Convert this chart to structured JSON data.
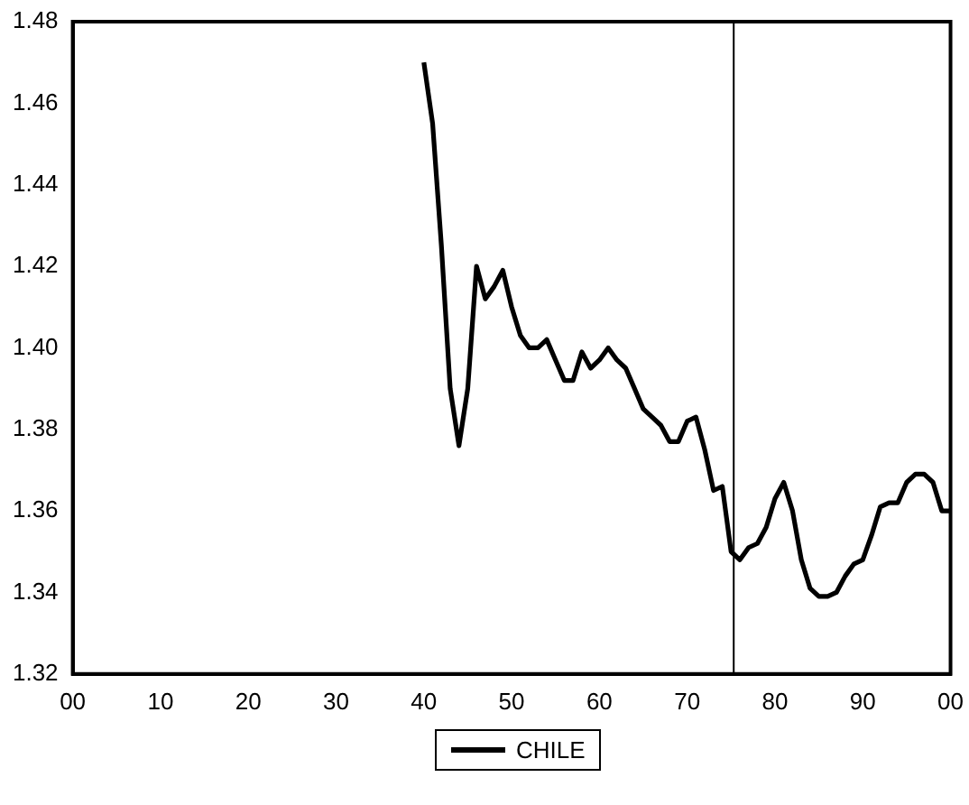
{
  "chart_data": {
    "type": "line",
    "x": [
      1940,
      1941,
      1942,
      1943,
      1944,
      1945,
      1946,
      1947,
      1948,
      1949,
      1950,
      1951,
      1952,
      1953,
      1954,
      1955,
      1956,
      1957,
      1958,
      1959,
      1960,
      1961,
      1962,
      1963,
      1964,
      1965,
      1966,
      1967,
      1968,
      1969,
      1970,
      1971,
      1972,
      1973,
      1974,
      1975,
      1976,
      1977,
      1978,
      1979,
      1980,
      1981,
      1982,
      1983,
      1984,
      1985,
      1986,
      1987,
      1988,
      1989,
      1990,
      1991,
      1992,
      1993,
      1994,
      1995,
      1996,
      1997,
      1998,
      1999,
      2000
    ],
    "series": [
      {
        "name": "CHILE",
        "color": "#000000",
        "values": [
          1.47,
          1.455,
          1.425,
          1.39,
          1.376,
          1.39,
          1.42,
          1.412,
          1.415,
          1.419,
          1.41,
          1.403,
          1.4,
          1.4,
          1.402,
          1.397,
          1.392,
          1.392,
          1.399,
          1.395,
          1.397,
          1.4,
          1.397,
          1.395,
          1.39,
          1.385,
          1.383,
          1.381,
          1.377,
          1.377,
          1.382,
          1.383,
          1.375,
          1.365,
          1.366,
          1.35,
          1.348,
          1.351,
          1.352,
          1.356,
          1.363,
          1.367,
          1.36,
          1.348,
          1.341,
          1.339,
          1.339,
          1.34,
          1.344,
          1.347,
          1.348,
          1.354,
          1.361,
          1.362,
          1.362,
          1.367,
          1.369,
          1.369,
          1.367,
          1.36,
          1.36
        ]
      }
    ],
    "xlim": [
      1900,
      2000
    ],
    "xticks": [
      {
        "value": 1900,
        "label": "00"
      },
      {
        "value": 1910,
        "label": "10"
      },
      {
        "value": 1920,
        "label": "20"
      },
      {
        "value": 1930,
        "label": "30"
      },
      {
        "value": 1940,
        "label": "40"
      },
      {
        "value": 1950,
        "label": "50"
      },
      {
        "value": 1960,
        "label": "60"
      },
      {
        "value": 1970,
        "label": "70"
      },
      {
        "value": 1980,
        "label": "80"
      },
      {
        "value": 1990,
        "label": "90"
      },
      {
        "value": 2000,
        "label": "00"
      }
    ],
    "ylim": [
      1.32,
      1.48
    ],
    "yticks": [
      1.32,
      1.34,
      1.36,
      1.38,
      {
        "value": 1.4,
        "label": "1.40"
      },
      1.42,
      1.44,
      1.46,
      1.48
    ],
    "ref_lines": [
      {
        "axis": "x",
        "value": 1975.3,
        "color": "#000000"
      }
    ],
    "grid": false,
    "legend": "bottom",
    "marker": "none",
    "line_style": "solid"
  }
}
